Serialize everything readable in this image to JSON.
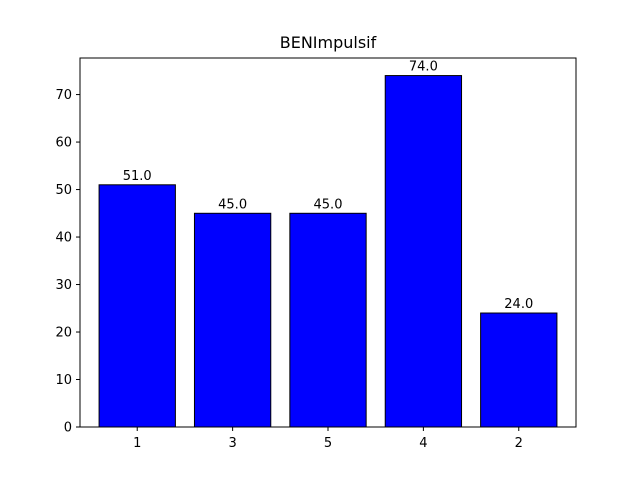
{
  "chart_data": {
    "type": "bar",
    "title": "BENImpulsif",
    "xlabel": "",
    "ylabel": "",
    "categories": [
      "1",
      "3",
      "5",
      "4",
      "2"
    ],
    "values": [
      51.0,
      45.0,
      45.0,
      74.0,
      24.0
    ],
    "data_labels": [
      "51.0",
      "45.0",
      "45.0",
      "74.0",
      "24.0"
    ],
    "ylim": [
      0,
      77.7
    ],
    "yticks": [
      0,
      10,
      20,
      30,
      40,
      50,
      60,
      70
    ],
    "grid": false,
    "bar_color": "#0000ff",
    "edge_color": "#000000"
  }
}
